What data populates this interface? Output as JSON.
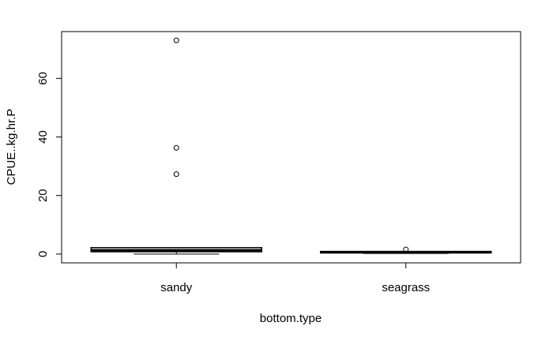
{
  "chart_data": {
    "type": "boxplot",
    "title": "",
    "xlabel": "bottom.type",
    "ylabel": "CPUE..kg.hr.P",
    "ylim": [
      -3,
      76
    ],
    "yticks": [
      0,
      20,
      40,
      60
    ],
    "grid": false,
    "legend": "none",
    "categories": [
      "sandy",
      "seagrass"
    ],
    "boxes": [
      {
        "category": "sandy",
        "whisker_low": 0.0,
        "q1": 0.8,
        "median": 1.3,
        "q3": 2.2,
        "whisker_high": 2.2,
        "outliers": [
          73.0,
          36.3,
          27.3
        ]
      },
      {
        "category": "seagrass",
        "whisker_low": 0.2,
        "q1": 0.4,
        "median": 0.6,
        "q3": 0.9,
        "whisker_high": 0.9,
        "outliers": [
          1.6
        ]
      }
    ]
  }
}
